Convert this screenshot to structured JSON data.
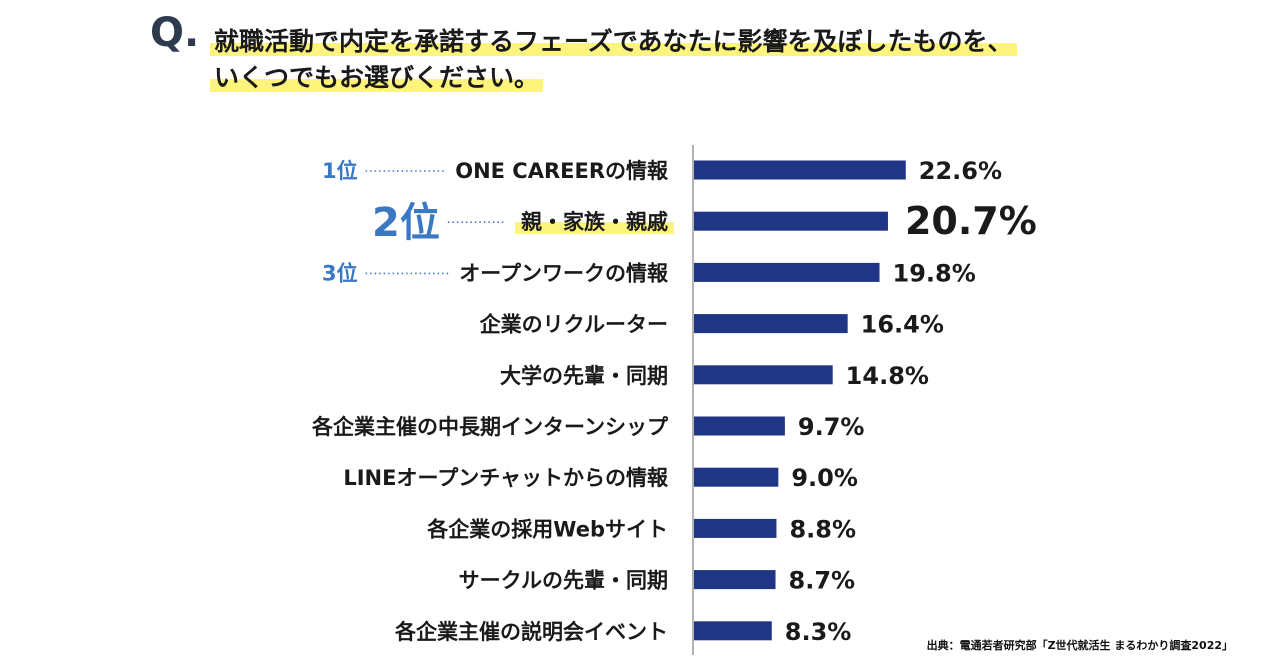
{
  "question": {
    "mark": "Q.",
    "line1": "就職活動で内定を承諾するフェーズであなたに影響を及ぼしたものを、",
    "line2": "いくつでもお選びください。"
  },
  "colors": {
    "bar": "#1f3585",
    "rank": "#3b78c4",
    "highlight": "#fcf47d",
    "text": "#1a1a1a",
    "axis": "#9a9a9a"
  },
  "chart_data": {
    "type": "bar",
    "orientation": "horizontal",
    "categories": [
      "ONE CAREERの情報",
      "親・家族・親戚",
      "オープンワークの情報",
      "企業のリクルーター",
      "大学の先輩・同期",
      "各企業主催の中長期インターンシップ",
      "LINEオープンチャットからの情報",
      "各企業の採用Webサイト",
      "サークルの先輩・同期",
      "各企業主催の説明会イベント"
    ],
    "values": [
      22.6,
      20.7,
      19.8,
      16.4,
      14.8,
      9.7,
      9.0,
      8.8,
      8.7,
      8.3
    ],
    "value_labels": [
      "22.6%",
      "20.7%",
      "19.8%",
      "16.4%",
      "14.8%",
      "9.7%",
      "9.0%",
      "8.8%",
      "8.7%",
      "8.3%"
    ],
    "ranks": [
      "1位",
      "2位",
      "3位"
    ],
    "highlighted_index": 1,
    "xlim": [
      0,
      100
    ]
  },
  "source": "出典：電通若者研究部「Z世代就活生 まるわかり調査2022」"
}
